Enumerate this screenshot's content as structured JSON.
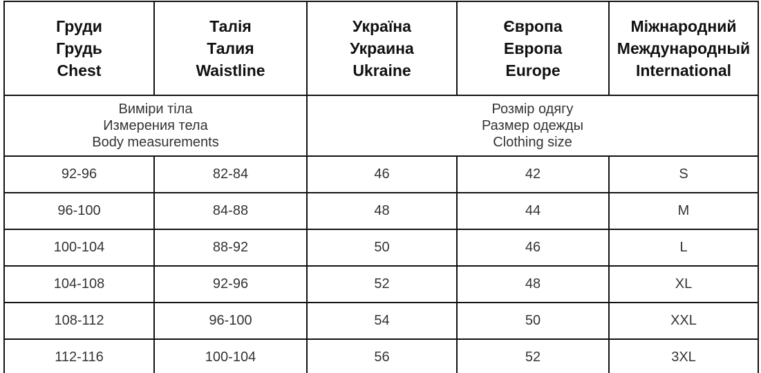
{
  "header": {
    "columns": [
      [
        "Груди",
        "Грудь",
        "Chest"
      ],
      [
        "Талія",
        "Талия",
        "Waistline"
      ],
      [
        "Україна",
        "Украина",
        "Ukraine"
      ],
      [
        "Європа",
        "Европа",
        "Europe"
      ],
      [
        "Міжнародний",
        "Международный",
        "International"
      ]
    ]
  },
  "groups": [
    {
      "lines": [
        "Виміри тіла",
        "Измерения тела",
        "Body measurements"
      ]
    },
    {
      "lines": [
        "Розмір одягу",
        "Размер одежды",
        "Clothing size"
      ]
    }
  ],
  "table": {
    "rows": [
      [
        "92-96",
        "82-84",
        "46",
        "42",
        "S"
      ],
      [
        "96-100",
        "84-88",
        "48",
        "44",
        "M"
      ],
      [
        "100-104",
        "88-92",
        "50",
        "46",
        "L"
      ],
      [
        "104-108",
        "92-96",
        "52",
        "48",
        "XL"
      ],
      [
        "108-112",
        "96-100",
        "54",
        "50",
        "XXL"
      ],
      [
        "112-116",
        "100-104",
        "56",
        "52",
        "3XL"
      ]
    ]
  }
}
